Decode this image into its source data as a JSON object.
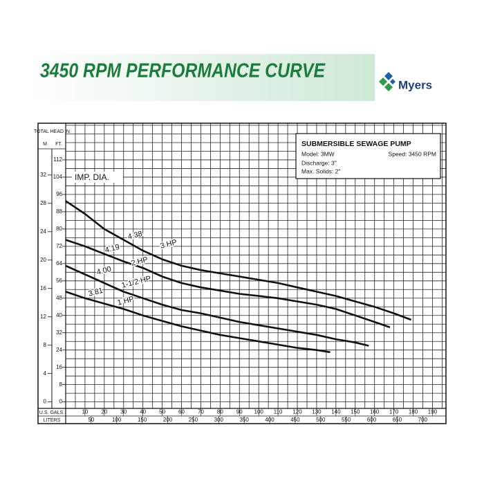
{
  "chart_data": {
    "type": "line",
    "title": "3450 RPM PERFORMANCE CURVE",
    "brand": "Myers",
    "y_axis_header": "TOTAL HEAD IN",
    "y_label": "FT.",
    "y2_label": "M",
    "x_label": "U.S. GALS.",
    "x2_label": "LITERS",
    "annotation": "IMP. DIA.",
    "info_box": {
      "title": "SUBMERSIBLE SEWAGE PUMP",
      "model": "Model: 3MW",
      "speed": "Speed: 3450 RPM",
      "discharge": "Discharge: 3\"",
      "solids": "Max. Solids: 2\""
    },
    "xlim": [
      0,
      197
    ],
    "xticks": [
      10,
      20,
      30,
      40,
      50,
      60,
      70,
      80,
      90,
      100,
      110,
      120,
      130,
      140,
      150,
      160,
      170,
      180,
      190
    ],
    "x2lim": [
      0,
      745.7
    ],
    "x2ticks": [
      50,
      100,
      150,
      200,
      250,
      300,
      350,
      400,
      450,
      500,
      550,
      600,
      650,
      700
    ],
    "ylim": [
      -3,
      128
    ],
    "yticks": [
      0,
      8,
      16,
      24,
      32,
      40,
      48,
      56,
      64,
      72,
      80,
      88,
      96,
      104,
      112
    ],
    "y2lim": [
      -0.914,
      39.01
    ],
    "y2ticks": [
      0,
      4,
      8,
      12,
      16,
      20,
      24,
      28,
      32
    ],
    "grid": true,
    "xgrid": [
      0,
      5,
      10,
      15,
      20,
      25,
      30,
      35,
      40,
      45,
      50,
      55,
      60,
      65,
      70,
      75,
      80,
      85,
      90,
      95,
      100,
      105,
      110,
      115,
      120,
      125,
      130,
      135,
      140,
      145,
      150,
      155,
      160,
      165,
      170,
      175,
      180,
      185,
      190,
      195
    ],
    "ygrid": [
      0,
      4,
      8,
      12,
      16,
      20,
      24,
      28,
      32,
      36,
      40,
      44,
      48,
      52,
      56,
      60,
      64,
      68,
      72,
      76,
      80,
      84,
      88,
      92,
      96,
      100,
      104,
      108,
      112,
      116,
      120,
      124,
      128
    ],
    "series": [
      {
        "name": "3 HP",
        "diameter": "4.38",
        "color": "#111111",
        "x": [
          0,
          10,
          20,
          30,
          40,
          50,
          60,
          70,
          80,
          90,
          100,
          110,
          120,
          130,
          140,
          150,
          160,
          170,
          179
        ],
        "values": [
          93,
          87,
          80,
          75,
          70,
          66,
          63,
          61,
          59.5,
          58,
          56.5,
          55,
          53,
          51,
          49,
          46.5,
          44,
          41,
          38
        ]
      },
      {
        "name": "2 HP",
        "diameter": "4.19",
        "color": "#111111",
        "x": [
          0,
          10,
          20,
          30,
          40,
          50,
          60,
          70,
          80,
          90,
          100,
          110,
          120,
          130,
          140,
          150,
          160,
          168
        ],
        "values": [
          75,
          72,
          68.5,
          65,
          62,
          58,
          55,
          53,
          51.5,
          50,
          49,
          48,
          46.5,
          45,
          43,
          40,
          37,
          34.5
        ]
      },
      {
        "name": "1-1/2 HP",
        "diameter": "4.00",
        "color": "#111111",
        "x": [
          0,
          10,
          20,
          30,
          40,
          50,
          60,
          70,
          80,
          90,
          100,
          110,
          120,
          130,
          140,
          150,
          157
        ],
        "values": [
          63,
          59,
          55,
          51,
          48,
          45,
          42.5,
          41,
          39,
          37,
          35.5,
          34,
          32.5,
          31,
          29,
          27.5,
          26
        ]
      },
      {
        "name": "1 HP",
        "diameter": "3.81",
        "color": "#111111",
        "x": [
          0,
          10,
          20,
          30,
          40,
          50,
          60,
          70,
          80,
          90,
          100,
          110,
          120,
          130,
          137
        ],
        "values": [
          51,
          48,
          45.5,
          43,
          40,
          37.5,
          35,
          33,
          31,
          29.5,
          28,
          26.5,
          25,
          24,
          23
        ]
      }
    ]
  }
}
